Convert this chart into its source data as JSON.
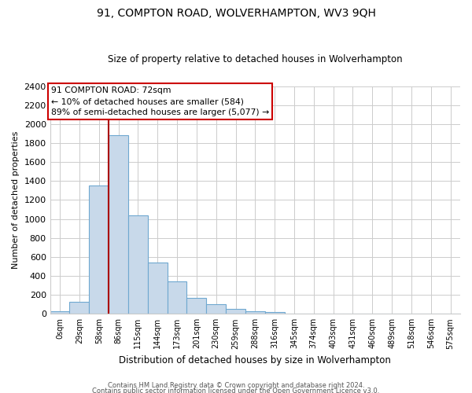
{
  "title": "91, COMPTON ROAD, WOLVERHAMPTON, WV3 9QH",
  "subtitle": "Size of property relative to detached houses in Wolverhampton",
  "xlabel": "Distribution of detached houses by size in Wolverhampton",
  "ylabel": "Number of detached properties",
  "bar_labels": [
    "0sqm",
    "29sqm",
    "58sqm",
    "86sqm",
    "115sqm",
    "144sqm",
    "173sqm",
    "201sqm",
    "230sqm",
    "259sqm",
    "288sqm",
    "316sqm",
    "345sqm",
    "374sqm",
    "403sqm",
    "431sqm",
    "460sqm",
    "489sqm",
    "518sqm",
    "546sqm",
    "575sqm"
  ],
  "bar_values": [
    30,
    130,
    1350,
    1880,
    1040,
    545,
    340,
    165,
    100,
    55,
    25,
    20,
    5,
    2,
    1,
    0,
    0,
    0,
    3,
    0,
    3
  ],
  "bar_color": "#c8d9ea",
  "bar_edge_color": "#6fa8d0",
  "ylim": [
    0,
    2400
  ],
  "yticks": [
    0,
    200,
    400,
    600,
    800,
    1000,
    1200,
    1400,
    1600,
    1800,
    2000,
    2200,
    2400
  ],
  "vline_color": "#aa0000",
  "annotation_title": "91 COMPTON ROAD: 72sqm",
  "annotation_line1": "← 10% of detached houses are smaller (584)",
  "annotation_line2": "89% of semi-detached houses are larger (5,077) →",
  "footnote1": "Contains HM Land Registry data © Crown copyright and database right 2024.",
  "footnote2": "Contains public sector information licensed under the Open Government Licence v3.0.",
  "background_color": "#ffffff",
  "grid_color": "#cccccc"
}
